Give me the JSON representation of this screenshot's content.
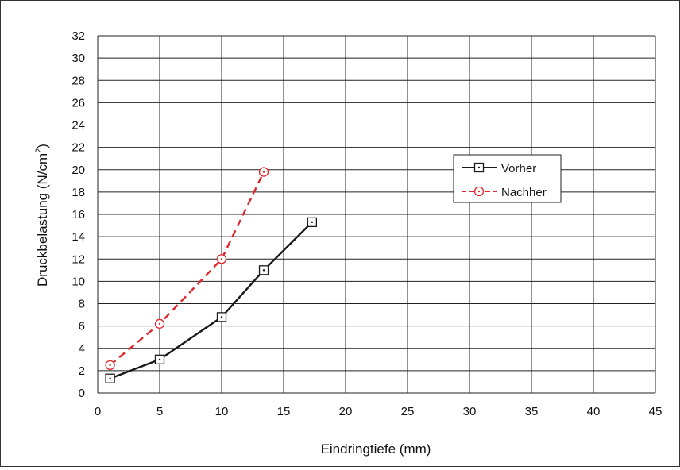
{
  "chart_data": {
    "type": "line",
    "title": "",
    "xlabel": "Eindringtiefe (mm)",
    "ylabel_main": "Druckbelastung (N/cm",
    "ylabel_sup": "2",
    "ylabel_end": ")",
    "xlim": [
      0,
      45
    ],
    "ylim": [
      0,
      32
    ],
    "xticks": [
      0,
      5,
      10,
      15,
      20,
      25,
      30,
      35,
      40,
      45
    ],
    "yticks": [
      0,
      2,
      4,
      6,
      8,
      10,
      12,
      14,
      16,
      18,
      20,
      22,
      24,
      26,
      28,
      30,
      32
    ],
    "grid": true,
    "legend_position": "right",
    "series": [
      {
        "name": "Vorher",
        "color": "#1a1a1a",
        "line_style": "solid",
        "marker": "square-dot",
        "x": [
          1,
          5,
          10,
          13.4,
          17.3
        ],
        "y": [
          1.3,
          3.0,
          6.8,
          11.0,
          15.3
        ]
      },
      {
        "name": "Nachher",
        "color": "#e0262b",
        "line_style": "dashed",
        "marker": "circle-dot",
        "x": [
          1,
          5,
          10,
          13.4
        ],
        "y": [
          2.5,
          6.2,
          12.0,
          19.8
        ]
      }
    ]
  }
}
